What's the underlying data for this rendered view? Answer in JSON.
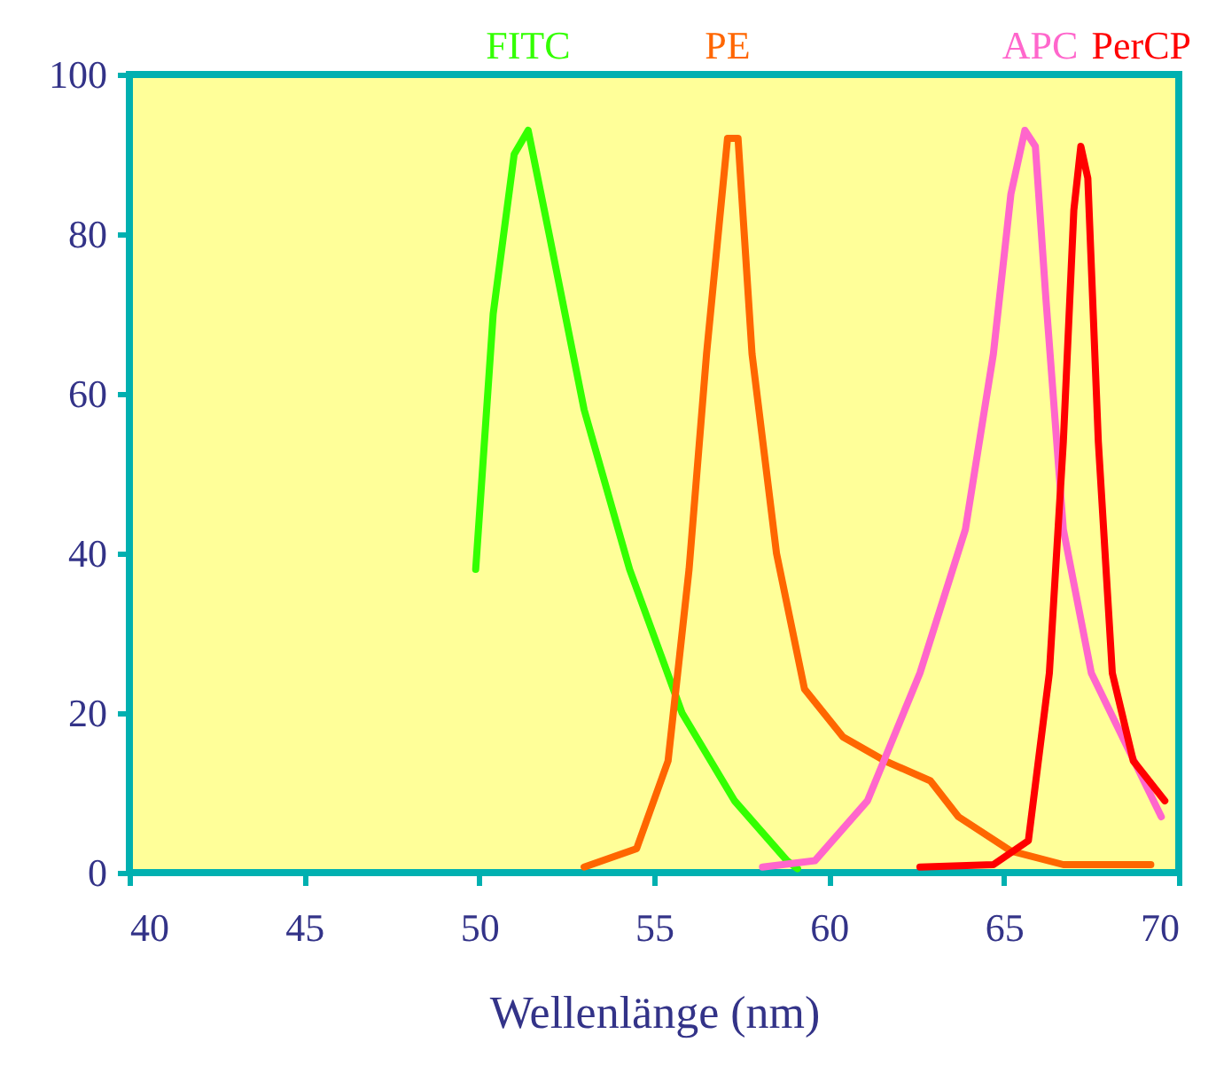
{
  "chart_data": {
    "type": "line",
    "xlabel": "Wellenlänge (nm)",
    "xlim": [
      40,
      70
    ],
    "ylim": [
      0,
      100
    ],
    "xticks": [
      40,
      45,
      50,
      55,
      60,
      65,
      70
    ],
    "yticks": [
      0,
      20,
      40,
      60,
      80,
      100
    ],
    "legend": false,
    "marker": "none",
    "line_style": "solid",
    "series": [
      {
        "name": "FITC",
        "color": "#33ff00",
        "x": [
          49.9,
          50.4,
          51.0,
          51.4,
          52.0,
          53.0,
          54.3,
          55.8,
          57.3,
          58.8,
          59.1
        ],
        "values": [
          38,
          70,
          90,
          93,
          80,
          58,
          38,
          20,
          9,
          1.5,
          0.5
        ]
      },
      {
        "name": "PE",
        "color": "#ff6600",
        "x": [
          53.0,
          54.5,
          55.4,
          56.0,
          56.5,
          57.1,
          57.4,
          57.8,
          58.5,
          59.3,
          60.4,
          61.6,
          62.9,
          63.7,
          65.2,
          66.7,
          69.2
        ],
        "values": [
          0.7,
          3,
          14,
          38,
          65,
          92,
          92,
          65,
          40,
          23,
          17,
          14,
          11.5,
          7,
          2.7,
          1,
          1
        ]
      },
      {
        "name": "APC",
        "color": "#ff66cc",
        "x": [
          58.1,
          59.6,
          61.1,
          62.6,
          63.9,
          64.7,
          65.2,
          65.6,
          65.9,
          66.2,
          66.7,
          67.5,
          68.5,
          69.5
        ],
        "values": [
          0.7,
          1.5,
          9,
          25,
          43,
          65,
          85,
          93,
          91,
          72,
          43,
          25,
          16,
          7
        ]
      },
      {
        "name": "PerCP",
        "color": "#ff0000",
        "x": [
          62.6,
          64.7,
          65.7,
          66.3,
          66.7,
          67.0,
          67.2,
          67.4,
          67.7,
          68.1,
          68.7,
          69.6
        ],
        "values": [
          0.7,
          1,
          4,
          25,
          54,
          83,
          91,
          87,
          54,
          25,
          14,
          9
        ]
      }
    ]
  }
}
